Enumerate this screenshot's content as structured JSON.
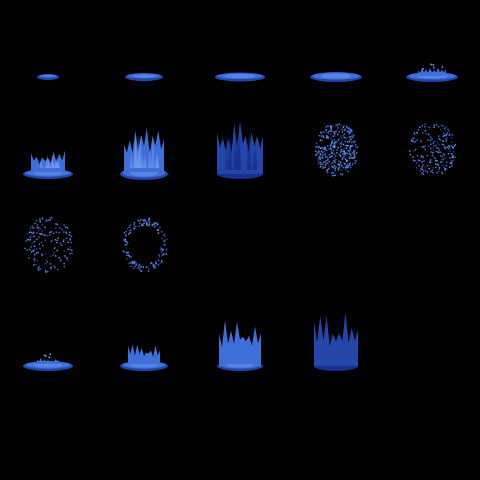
{
  "sheet": {
    "background": "#000000",
    "palette": {
      "light": "#6f9bf0",
      "mid": "#3f6fd8",
      "dark": "#2346a8",
      "deep": "#17318a",
      "speck": "#4c78e0"
    },
    "rows": [
      {
        "name": "puddle-grow",
        "frames": [
          {
            "kind": "puddle",
            "size": "small"
          },
          {
            "kind": "puddle",
            "size": "medium"
          },
          {
            "kind": "puddle",
            "size": "large"
          },
          {
            "kind": "puddle",
            "size": "larger"
          },
          {
            "kind": "puddle-splash",
            "size": "largest"
          }
        ]
      },
      {
        "name": "flame-burst",
        "frames": [
          {
            "kind": "flame-low"
          },
          {
            "kind": "flame-tall"
          },
          {
            "kind": "flame-full"
          },
          {
            "kind": "sparkle-dense"
          },
          {
            "kind": "sparkle-sparse"
          }
        ]
      },
      {
        "name": "dissipate",
        "frames": [
          {
            "kind": "sparkle-faint"
          },
          {
            "kind": "sparkle-ring"
          }
        ]
      },
      {
        "name": "rise",
        "frames": [
          {
            "kind": "puddle-splash-small"
          },
          {
            "kind": "flame-short"
          },
          {
            "kind": "flame-medium"
          },
          {
            "kind": "flame-dark"
          }
        ]
      }
    ]
  }
}
